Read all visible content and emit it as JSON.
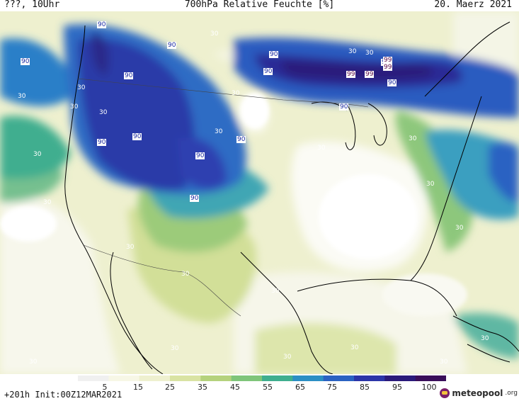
{
  "header": {
    "left": "???, 10Uhr",
    "title": "700hPa Relative Feuchte [%]",
    "date": "20. Maerz 2021"
  },
  "footer": {
    "run_info": "+201h  Init:00Z12MAR2021",
    "brand": "meteopool",
    "brand_suffix": ".org"
  },
  "legend": {
    "ticks": [
      "5",
      "15",
      "25",
      "35",
      "45",
      "55",
      "65",
      "75",
      "85",
      "95",
      "100"
    ],
    "colors": [
      "#f0f0f0",
      "#f7f7e6",
      "#eef0cf",
      "#d9e3a3",
      "#b5d27d",
      "#7fc57a",
      "#3fae8f",
      "#2b8fc4",
      "#2a62c2",
      "#2b35a8",
      "#2a1a7a",
      "#3a0e5a"
    ]
  },
  "map": {
    "labels": [
      "90",
      "90",
      "90",
      "90",
      "90",
      "90",
      "90",
      "90",
      "90",
      "90",
      "90",
      "90",
      "90",
      "90",
      "99",
      "99",
      "99",
      "99",
      "30",
      "30",
      "30",
      "30",
      "30",
      "30",
      "30",
      "30",
      "30",
      "30",
      "30",
      "30",
      "30",
      "30",
      "30",
      "30",
      "30",
      "30",
      "30",
      "30",
      "30",
      "30",
      "30",
      "30"
    ]
  }
}
